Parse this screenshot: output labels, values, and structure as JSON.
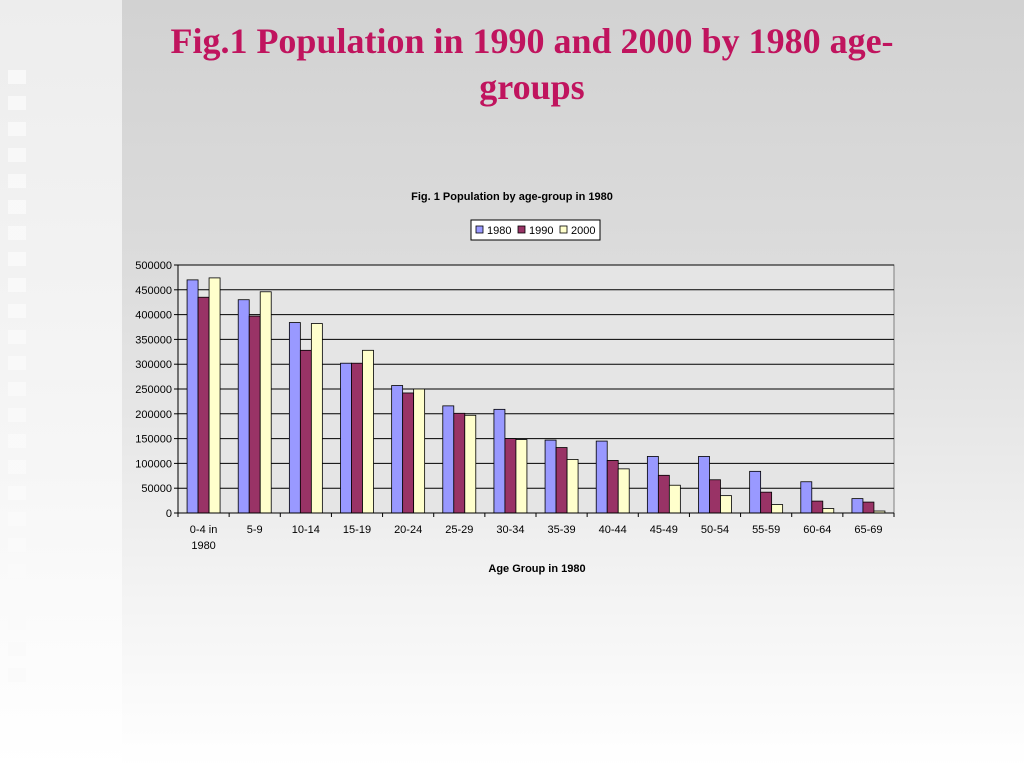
{
  "slide": {
    "title": "Fig.1 Population in 1990 and 2000 by 1980 age-groups"
  },
  "chart_data": {
    "type": "bar",
    "title": "Fig. 1 Population by age-group in 1980",
    "xlabel": "Age Group in 1980",
    "ylabel": "",
    "ylim": [
      0,
      500000
    ],
    "yticks": [
      "0",
      "50000",
      "100000",
      "150000",
      "200000",
      "250000",
      "300000",
      "350000",
      "400000",
      "450000",
      "500000"
    ],
    "grid": true,
    "legend_position": "top-center",
    "categories": [
      "0-4 in 1980",
      "5-9",
      "10-14",
      "15-19",
      "20-24",
      "25-29",
      "30-34",
      "35-39",
      "40-44",
      "45-49",
      "50-54",
      "55-59",
      "60-64",
      "65-69"
    ],
    "series": [
      {
        "name": "1980",
        "color": "#9999ff",
        "values": [
          470000,
          430000,
          384000,
          302000,
          257000,
          216000,
          209000,
          147000,
          145000,
          114000,
          114000,
          84000,
          63000,
          29000
        ]
      },
      {
        "name": "1990",
        "color": "#993366",
        "values": [
          435000,
          397000,
          328000,
          302000,
          242000,
          201000,
          150000,
          132000,
          106000,
          76000,
          67000,
          42000,
          24000,
          22000
        ]
      },
      {
        "name": "2000",
        "color": "#ffffcc",
        "values": [
          474000,
          446000,
          382000,
          328000,
          250000,
          197000,
          148000,
          108000,
          89000,
          56000,
          35000,
          17000,
          9000,
          4000
        ]
      }
    ]
  }
}
